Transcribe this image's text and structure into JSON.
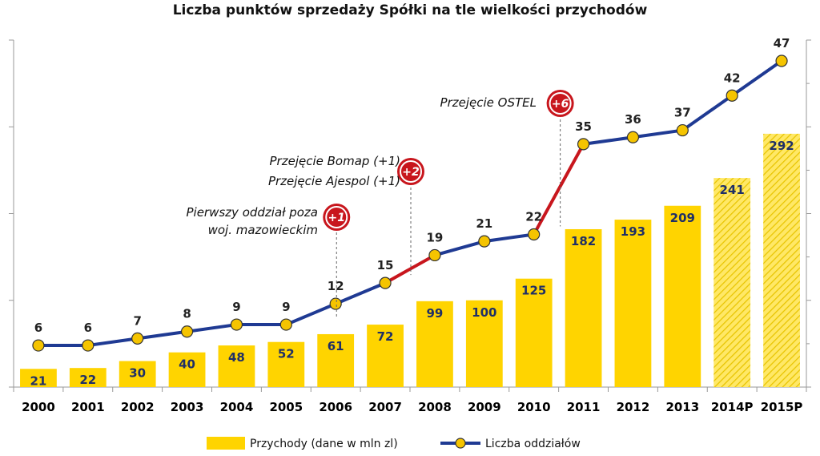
{
  "chart_data": {
    "type": "bar",
    "title": "Liczba punktów sprzedaży Spółki na tle wielkości przychodów",
    "categories": [
      "2000",
      "2001",
      "2002",
      "2003",
      "2004",
      "2005",
      "2006",
      "2007",
      "2008",
      "2009",
      "2010",
      "2011",
      "2012",
      "2013",
      "2014P",
      "2015P"
    ],
    "series": [
      {
        "name": "Przychody (dane w mln zl)",
        "type": "bar",
        "color": "#FFD400",
        "values": [
          21,
          22,
          30,
          40,
          48,
          52,
          61,
          72,
          99,
          100,
          125,
          182,
          193,
          209,
          241,
          292
        ],
        "forecast_categories": [
          "2014P",
          "2015P"
        ]
      },
      {
        "name": "Liczba oddziałów",
        "type": "line",
        "color": "#1F3A93",
        "highlight_color": "#C8161D",
        "marker_color": "#F5C400",
        "values": [
          6,
          6,
          7,
          8,
          9,
          9,
          12,
          15,
          19,
          21,
          22,
          35,
          36,
          37,
          42,
          47
        ]
      }
    ],
    "bar_ylim": [
      0,
      400
    ],
    "line_ylim": [
      0,
      50
    ],
    "grid": false,
    "legend_position": "bottom",
    "annotations": [
      {
        "lines": [
          "Pierwszy oddział poza",
          "woj. mazowieckim"
        ],
        "badge": "+1",
        "category": "2006"
      },
      {
        "lines": [
          "Przejęcie Bomap (+1)",
          "Przejęcie Ajespol (+1)"
        ],
        "badge": "+2",
        "category": "2008"
      },
      {
        "lines": [
          "Przejęcie OSTEL"
        ],
        "badge": "+6",
        "category": "2011"
      }
    ],
    "highlighted_segments": [
      [
        "2007",
        "2008"
      ],
      [
        "2010",
        "2011"
      ]
    ]
  }
}
